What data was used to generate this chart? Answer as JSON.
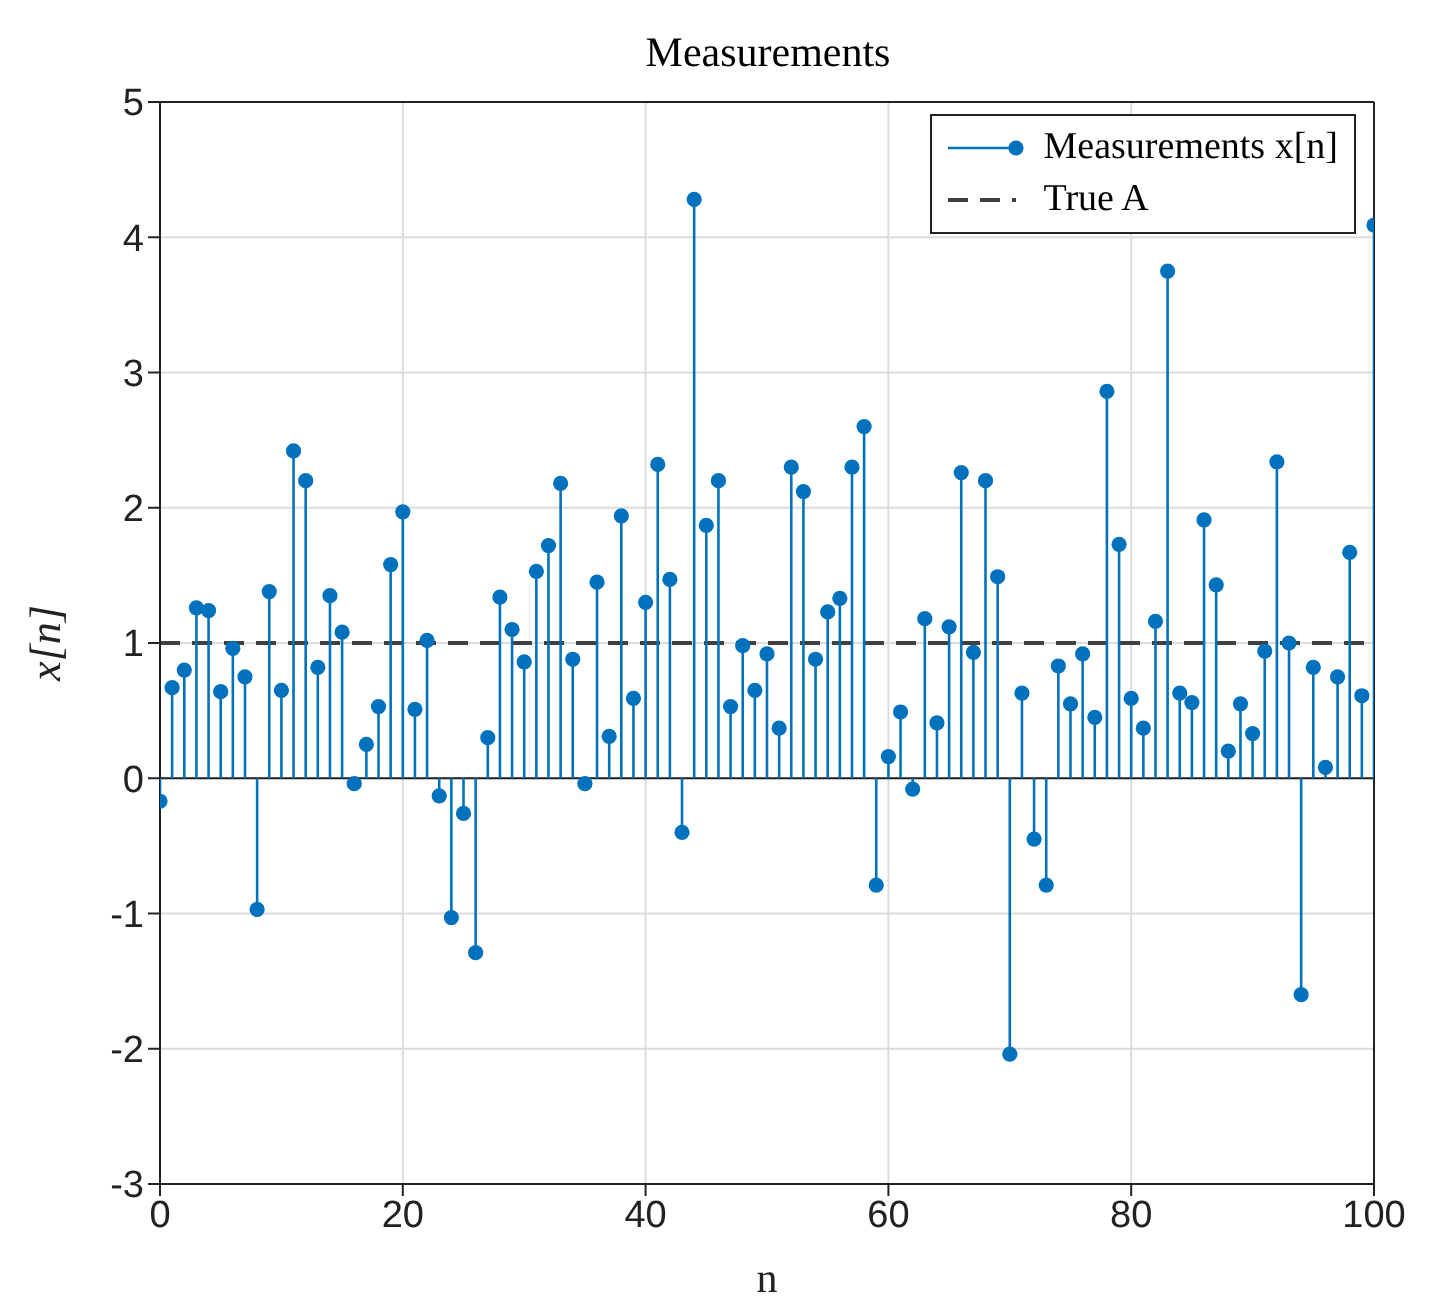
{
  "chart_data": {
    "type": "lollipop",
    "title": "Measurements",
    "xlabel": "n",
    "ylabel": "x[n]",
    "x": [
      0,
      1,
      2,
      3,
      4,
      5,
      6,
      7,
      8,
      9,
      10,
      11,
      12,
      13,
      14,
      15,
      16,
      17,
      18,
      19,
      20,
      21,
      22,
      23,
      24,
      25,
      26,
      27,
      28,
      29,
      30,
      31,
      32,
      33,
      34,
      35,
      36,
      37,
      38,
      39,
      40,
      41,
      42,
      43,
      44,
      45,
      46,
      47,
      48,
      49,
      50,
      51,
      52,
      53,
      54,
      55,
      56,
      57,
      58,
      59,
      60,
      61,
      62,
      63,
      64,
      65,
      66,
      67,
      68,
      69,
      70,
      71,
      72,
      73,
      74,
      75,
      76,
      77,
      78,
      79,
      80,
      81,
      82,
      83,
      84,
      85,
      86,
      87,
      88,
      89,
      90,
      91,
      92,
      93,
      94,
      95,
      96,
      97,
      98,
      99,
      100
    ],
    "series": [
      {
        "name": "Measurements x[n]",
        "color": "#0072bd",
        "values": [
          -0.17,
          0.67,
          0.8,
          1.26,
          1.24,
          0.64,
          0.96,
          0.75,
          -0.97,
          1.38,
          0.65,
          2.42,
          2.2,
          0.82,
          1.35,
          1.08,
          -0.04,
          0.25,
          0.53,
          1.58,
          1.97,
          0.51,
          1.02,
          -0.13,
          -1.03,
          -0.26,
          -1.29,
          0.3,
          1.34,
          1.1,
          0.86,
          1.53,
          1.72,
          2.18,
          0.88,
          -0.04,
          1.45,
          0.31,
          1.94,
          0.59,
          1.3,
          2.32,
          1.47,
          -0.4,
          4.28,
          1.87,
          2.2,
          0.53,
          0.98,
          0.65,
          0.92,
          0.37,
          2.3,
          2.12,
          0.88,
          1.23,
          1.33,
          2.3,
          2.6,
          -0.79,
          0.16,
          0.49,
          -0.08,
          1.18,
          0.41,
          1.12,
          2.26,
          0.93,
          2.2,
          1.49,
          -2.04,
          0.63,
          -0.45,
          -0.79,
          0.83,
          0.55,
          0.92,
          0.45,
          2.86,
          1.73,
          0.59,
          0.37,
          1.16,
          3.75,
          0.63,
          0.56,
          1.91,
          1.43,
          0.2,
          0.55,
          0.33,
          0.94,
          2.34,
          1.0,
          -1.6,
          0.82,
          0.08,
          0.75,
          1.67,
          0.61,
          4.09
        ]
      }
    ],
    "ref_lines": [
      {
        "axis": "y",
        "value": 1,
        "label": "True A",
        "color": "#404040",
        "line_style": "dashed"
      }
    ],
    "xlim": [
      0,
      100
    ],
    "xticks": [
      0,
      20,
      40,
      60,
      80,
      100
    ],
    "ylim": [
      -3,
      5
    ],
    "yticks": [
      -3,
      -2,
      -1,
      0,
      1,
      2,
      3,
      4,
      5
    ],
    "grid": true,
    "legend": "top right",
    "marker": "circle"
  }
}
